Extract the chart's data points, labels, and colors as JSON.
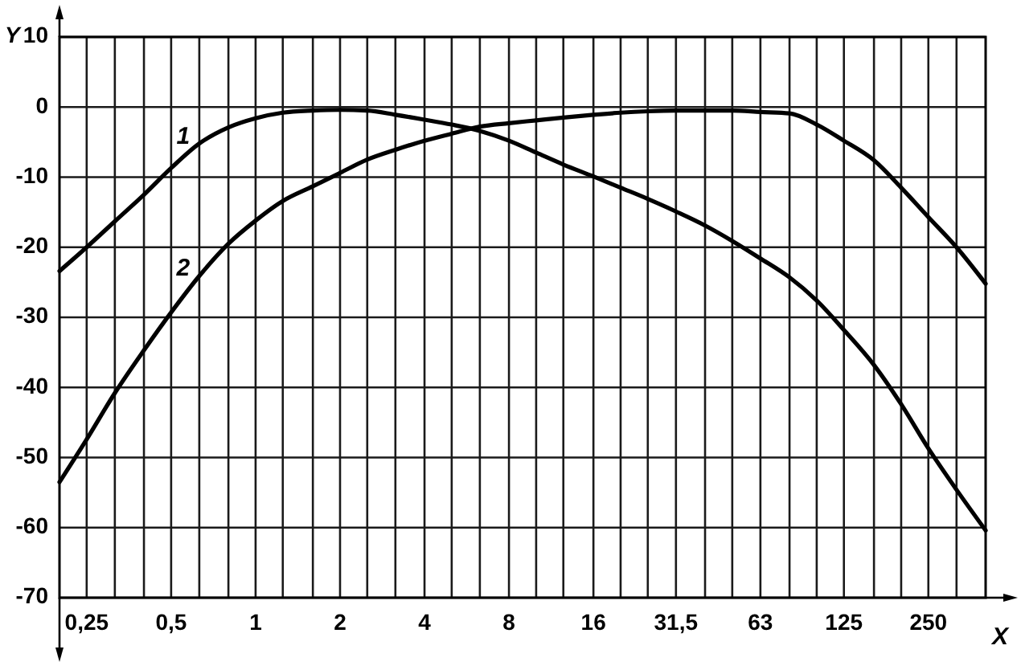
{
  "chart_data": {
    "type": "line",
    "xlabel": "X",
    "ylabel": "Y",
    "x": [
      0.2,
      0.25,
      0.315,
      0.4,
      0.5,
      0.63,
      0.8,
      1,
      1.25,
      1.6,
      2,
      2.5,
      3.15,
      4,
      5,
      6.3,
      8,
      10,
      12.5,
      16,
      20,
      25,
      31.5,
      40,
      50,
      63,
      80,
      100,
      125,
      160,
      200,
      250,
      315,
      400
    ],
    "series": [
      {
        "name": "1",
        "color": "#000000",
        "values": [
          -23.4,
          -20.0,
          -16.3,
          -12.5,
          -8.7,
          -5.2,
          -2.9,
          -1.6,
          -0.8,
          -0.5,
          -0.4,
          -0.5,
          -1.1,
          -1.8,
          -2.5,
          -3.4,
          -4.8,
          -6.5,
          -8.2,
          -9.9,
          -11.5,
          -13.1,
          -14.9,
          -16.9,
          -19.1,
          -21.6,
          -24.3,
          -27.6,
          -31.8,
          -36.8,
          -42.4,
          -48.7,
          -54.6,
          -60.4
        ]
      },
      {
        "name": "2",
        "color": "#000000",
        "values": [
          -53.5,
          -47.4,
          -40.8,
          -34.7,
          -29.3,
          -24.1,
          -19.5,
          -16.2,
          -13.4,
          -11.3,
          -9.4,
          -7.5,
          -6.1,
          -4.8,
          -3.8,
          -2.8,
          -2.3,
          -1.9,
          -1.5,
          -1.1,
          -0.8,
          -0.6,
          -0.5,
          -0.5,
          -0.5,
          -0.7,
          -0.9,
          -2.5,
          -4.8,
          -7.6,
          -11.5,
          -15.7,
          -20.0,
          -25.2
        ]
      }
    ],
    "log": "x",
    "xlim": [
      0.2,
      400
    ],
    "xticks": [
      {
        "value": 0.25,
        "label": "0,25"
      },
      {
        "value": 0.315,
        "label": null
      },
      {
        "value": 0.4,
        "label": null
      },
      {
        "value": 0.5,
        "label": "0,5"
      },
      {
        "value": 0.63,
        "label": null
      },
      {
        "value": 0.8,
        "label": null
      },
      1,
      {
        "value": 1.25,
        "label": null
      },
      {
        "value": 1.6,
        "label": null
      },
      2,
      {
        "value": 2.5,
        "label": null
      },
      {
        "value": 3.15,
        "label": null
      },
      4,
      {
        "value": 5,
        "label": null
      },
      {
        "value": 6.3,
        "label": null
      },
      8,
      {
        "value": 10,
        "label": null
      },
      {
        "value": 12.5,
        "label": null
      },
      16,
      {
        "value": 20,
        "label": null
      },
      {
        "value": 25,
        "label": null
      },
      {
        "value": 31.5,
        "label": "31,5"
      },
      {
        "value": 40,
        "label": null
      },
      {
        "value": 50,
        "label": null
      },
      63,
      {
        "value": 80,
        "label": null
      },
      {
        "value": 100,
        "label": null
      },
      125,
      {
        "value": 160,
        "label": null
      },
      {
        "value": 200,
        "label": null
      },
      250,
      {
        "value": 315,
        "label": null
      }
    ],
    "ylim": [
      -70,
      10
    ],
    "yticks": [
      -70,
      -60,
      -50,
      -40,
      -30,
      -20,
      -10,
      0,
      10
    ],
    "grid": true,
    "line_style": "solid"
  }
}
